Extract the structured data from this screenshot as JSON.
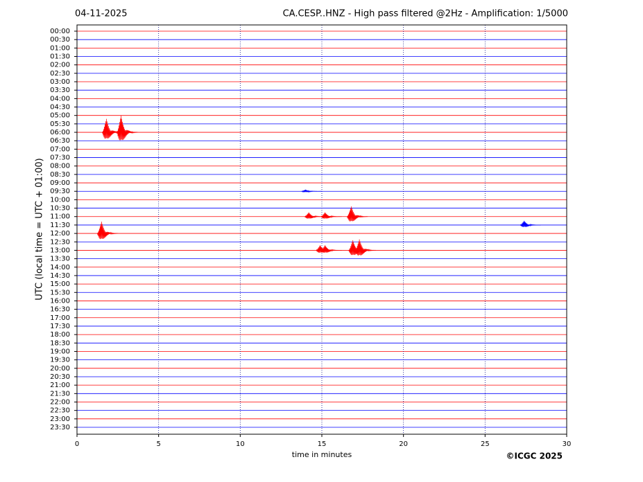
{
  "chart_data": {
    "type": "helicorder",
    "date": "04-11-2025",
    "title": "CA.CESP..HNZ - High pass filtered @2Hz - Amplification: 1/5000",
    "xlabel": "time in minutes",
    "ylabel": "UTC (local time = UTC + 01:00)",
    "copyright": "©ICGC 2025",
    "xlim": [
      0,
      30
    ],
    "xticks": [
      0,
      5,
      10,
      15,
      20,
      25,
      30
    ],
    "grid": true,
    "trace_colors": [
      "#ff0000",
      "#0000ff"
    ],
    "categories": [
      "00:00",
      "00:30",
      "01:00",
      "01:30",
      "02:00",
      "02:30",
      "03:00",
      "03:30",
      "04:00",
      "04:30",
      "05:00",
      "05:30",
      "06:00",
      "06:30",
      "07:00",
      "07:30",
      "08:00",
      "08:30",
      "09:00",
      "09:30",
      "10:00",
      "10:30",
      "11:00",
      "11:30",
      "12:00",
      "12:30",
      "13:00",
      "13:30",
      "14:00",
      "14:30",
      "15:00",
      "15:30",
      "16:00",
      "16:30",
      "17:00",
      "17:30",
      "18:00",
      "18:30",
      "19:00",
      "19:30",
      "20:00",
      "20:30",
      "21:00",
      "21:30",
      "22:00",
      "22:30",
      "23:00",
      "23:30"
    ],
    "events": [
      {
        "row": "06:00",
        "x": 1.8,
        "amplitude": 1.6
      },
      {
        "row": "06:00",
        "x": 2.7,
        "amplitude": 2.0
      },
      {
        "row": "09:30",
        "x": 14.0,
        "amplitude": 0.2
      },
      {
        "row": "11:00",
        "x": 14.2,
        "amplitude": 0.5
      },
      {
        "row": "11:00",
        "x": 15.2,
        "amplitude": 0.5
      },
      {
        "row": "11:00",
        "x": 16.8,
        "amplitude": 1.2
      },
      {
        "row": "11:30",
        "x": 27.4,
        "amplitude": 0.5
      },
      {
        "row": "12:00",
        "x": 1.5,
        "amplitude": 1.4
      },
      {
        "row": "13:00",
        "x": 14.9,
        "amplitude": 0.6
      },
      {
        "row": "13:00",
        "x": 15.2,
        "amplitude": 0.6
      },
      {
        "row": "13:00",
        "x": 16.9,
        "amplitude": 1.2
      },
      {
        "row": "13:00",
        "x": 17.3,
        "amplitude": 1.3
      }
    ]
  }
}
